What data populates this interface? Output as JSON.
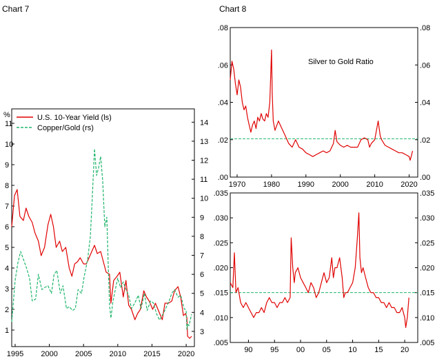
{
  "titles": {
    "chart7": "Chart 7",
    "chart8": "Chart 8"
  },
  "colors": {
    "red": "#e00000",
    "green": "#1fb56b",
    "refline": "#1fb56b"
  },
  "chart_data": [
    {
      "id": "chart7",
      "type": "line",
      "title": "",
      "ylabel_left": "%",
      "xlim": [
        1994.5,
        2021.2
      ],
      "ylim_left": [
        0.2,
        11.7
      ],
      "ylim_right": [
        2.2,
        14.7
      ],
      "x_ticks": [
        1995,
        2000,
        2005,
        2010,
        2015,
        2020
      ],
      "x_tick_labels": [
        "1995",
        "2000",
        "2005",
        "2010",
        "2015",
        "2020"
      ],
      "y_left_ticks": [
        1,
        2,
        3,
        4,
        5,
        6,
        7,
        8,
        9,
        10,
        11
      ],
      "y_left_tick_labels": [
        "1",
        "2",
        "3",
        "4",
        "5",
        "6",
        "7",
        "8",
        "9",
        "10",
        "11"
      ],
      "y_right_ticks": [
        3,
        4,
        5,
        6,
        7,
        8,
        9,
        10,
        11,
        12,
        13,
        14
      ],
      "y_right_tick_labels": [
        "3",
        "4",
        "5",
        "6",
        "7",
        "8",
        "9",
        "10",
        "11",
        "12",
        "13",
        "14"
      ],
      "legend_position": "top-left",
      "grid": false,
      "series": [
        {
          "name": "U.S. 10-Year Yield (ls)",
          "axis": "left",
          "style": "solid",
          "color": "#e00000",
          "x": [
            1994.5,
            1994.9,
            1995.3,
            1995.7,
            1996.2,
            1996.6,
            1997.0,
            1997.5,
            1997.9,
            1998.4,
            1998.8,
            1999.3,
            1999.8,
            2000.2,
            2000.6,
            2001.0,
            2001.5,
            2001.9,
            2002.4,
            2002.9,
            2003.3,
            2003.7,
            2004.1,
            2004.5,
            2005.0,
            2005.4,
            2005.8,
            2006.2,
            2006.6,
            2007.0,
            2007.5,
            2007.9,
            2008.3,
            2008.8,
            2009.0,
            2009.4,
            2009.9,
            2010.3,
            2010.8,
            2011.2,
            2011.6,
            2012.0,
            2012.5,
            2012.9,
            2013.3,
            2013.8,
            2014.2,
            2014.6,
            2015.1,
            2015.5,
            2016.0,
            2016.5,
            2016.9,
            2017.4,
            2017.9,
            2018.3,
            2018.8,
            2019.2,
            2019.6,
            2019.9,
            2020.1,
            2020.2,
            2020.5,
            2020.8
          ],
          "y": [
            6.0,
            7.5,
            7.8,
            6.5,
            6.3,
            6.9,
            6.5,
            6.2,
            5.7,
            5.3,
            4.6,
            5.0,
            6.1,
            6.6,
            6.0,
            5.0,
            5.3,
            4.8,
            5.0,
            4.0,
            3.6,
            4.2,
            4.3,
            4.5,
            4.2,
            4.2,
            4.5,
            4.8,
            5.1,
            4.7,
            4.8,
            4.3,
            3.8,
            3.7,
            2.3,
            3.4,
            3.6,
            3.8,
            2.6,
            3.4,
            2.2,
            2.0,
            1.5,
            1.8,
            2.0,
            2.9,
            2.6,
            2.4,
            2.0,
            2.3,
            1.9,
            1.5,
            2.3,
            2.3,
            2.4,
            2.9,
            3.1,
            2.6,
            1.7,
            1.8,
            1.6,
            0.7,
            0.6,
            0.7
          ]
        },
        {
          "name": "Copper/Gold (rs)",
          "axis": "right",
          "style": "dashed",
          "color": "#1fb56b",
          "x": [
            1994.5,
            1995.0,
            1995.4,
            1995.8,
            1996.2,
            1996.7,
            1997.1,
            1997.5,
            1998.0,
            1998.4,
            1998.9,
            1999.3,
            1999.8,
            2000.3,
            2000.7,
            2001.1,
            2001.6,
            2002.0,
            2002.5,
            2002.9,
            2003.4,
            2003.8,
            2004.2,
            2004.7,
            2005.1,
            2005.6,
            2006.0,
            2006.3,
            2006.6,
            2006.9,
            2007.2,
            2007.5,
            2007.8,
            2008.1,
            2008.4,
            2008.6,
            2008.8,
            2009.0,
            2009.3,
            2009.7,
            2010.0,
            2010.4,
            2010.8,
            2011.2,
            2011.6,
            2012.0,
            2012.5,
            2013.0,
            2013.4,
            2013.9,
            2014.3,
            2014.8,
            2015.2,
            2015.7,
            2016.1,
            2016.6,
            2017.0,
            2017.5,
            2017.9,
            2018.3,
            2018.8,
            2019.2,
            2019.7,
            2020.0,
            2020.1,
            2020.2,
            2020.4,
            2020.6,
            2020.8
          ],
          "y": [
            3.5,
            5.7,
            6.6,
            7.2,
            6.8,
            6.3,
            5.8,
            4.6,
            4.7,
            6.0,
            5.2,
            5.3,
            5.4,
            5.0,
            6.0,
            6.2,
            5.0,
            5.4,
            4.2,
            4.3,
            4.1,
            4.2,
            5.2,
            5.0,
            5.9,
            6.8,
            8.0,
            10.2,
            12.6,
            11.2,
            11.6,
            12.2,
            10.9,
            8.5,
            9.0,
            6.6,
            4.4,
            3.7,
            4.6,
            5.3,
            5.8,
            5.3,
            5.6,
            5.2,
            4.9,
            4.2,
            4.5,
            4.9,
            4.2,
            5.0,
            4.1,
            4.6,
            4.5,
            3.9,
            3.6,
            3.9,
            4.2,
            4.6,
            5.0,
            5.2,
            4.8,
            4.9,
            4.2,
            4.1,
            3.1,
            3.4,
            3.3,
            3.6,
            3.9
          ]
        }
      ]
    },
    {
      "id": "chart8-top",
      "type": "line",
      "title": "",
      "annotation": "Silver to Gold Ratio",
      "xlim": [
        1968,
        2022.5
      ],
      "ylim": [
        0,
        0.08
      ],
      "x_ticks": [
        1970,
        1980,
        1990,
        2000,
        2010,
        2020
      ],
      "x_tick_labels": [
        "1970",
        "1980",
        "1990",
        "2000",
        "2010",
        "2020"
      ],
      "y_ticks": [
        0,
        0.02,
        0.04,
        0.06,
        0.08
      ],
      "y_tick_labels": [
        ".00",
        ".02",
        ".04",
        ".06",
        ".08"
      ],
      "reference_line": 0.0205,
      "grid": false,
      "series": [
        {
          "name": "",
          "style": "solid",
          "color": "#e00000",
          "x": [
            1968.0,
            1968.5,
            1969.0,
            1969.5,
            1970.0,
            1970.5,
            1971.0,
            1971.5,
            1972.0,
            1972.5,
            1973.0,
            1973.5,
            1974.0,
            1974.5,
            1975.0,
            1975.5,
            1976.0,
            1976.5,
            1977.0,
            1977.5,
            1978.0,
            1978.5,
            1979.0,
            1979.5,
            1980.0,
            1980.2,
            1980.5,
            1981.0,
            1982.0,
            1983.0,
            1984.0,
            1985.0,
            1986.0,
            1987.0,
            1988.0,
            1989.0,
            1990.0,
            1991.0,
            1992.0,
            1993.0,
            1994.0,
            1995.0,
            1996.0,
            1997.0,
            1998.0,
            1998.5,
            1999.0,
            2000.0,
            2001.0,
            2002.0,
            2003.0,
            2004.0,
            2005.0,
            2006.0,
            2007.0,
            2008.0,
            2008.5,
            2009.0,
            2010.0,
            2011.0,
            2011.3,
            2011.6,
            2012.0,
            2013.0,
            2014.0,
            2015.0,
            2016.0,
            2017.0,
            2018.0,
            2019.0,
            2020.0,
            2020.3,
            2020.6,
            2021.0
          ],
          "y": [
            0.052,
            0.062,
            0.058,
            0.05,
            0.044,
            0.052,
            0.048,
            0.04,
            0.036,
            0.038,
            0.032,
            0.028,
            0.024,
            0.028,
            0.03,
            0.026,
            0.032,
            0.03,
            0.034,
            0.031,
            0.03,
            0.034,
            0.032,
            0.04,
            0.068,
            0.045,
            0.03,
            0.025,
            0.03,
            0.026,
            0.022,
            0.018,
            0.016,
            0.02,
            0.016,
            0.015,
            0.013,
            0.012,
            0.011,
            0.012,
            0.013,
            0.014,
            0.013,
            0.014,
            0.018,
            0.025,
            0.019,
            0.017,
            0.016,
            0.017,
            0.016,
            0.016,
            0.016,
            0.02,
            0.021,
            0.02,
            0.016,
            0.018,
            0.02,
            0.03,
            0.026,
            0.022,
            0.02,
            0.017,
            0.016,
            0.015,
            0.014,
            0.013,
            0.013,
            0.012,
            0.011,
            0.009,
            0.011,
            0.014
          ]
        }
      ]
    },
    {
      "id": "chart8-bottom",
      "type": "line",
      "title": "",
      "xlim": [
        1986.5,
        2022.5
      ],
      "ylim": [
        0.005,
        0.035
      ],
      "x_ticks": [
        1990,
        1995,
        2000,
        2005,
        2010,
        2015,
        2020
      ],
      "x_tick_labels": [
        "90",
        "95",
        "00",
        "05",
        "10",
        "15",
        "20"
      ],
      "y_ticks": [
        0.005,
        0.01,
        0.015,
        0.02,
        0.025,
        0.03,
        0.035
      ],
      "y_tick_labels": [
        ".005",
        ".010",
        ".015",
        ".020",
        ".025",
        ".030",
        ".035"
      ],
      "reference_line": 0.015,
      "grid": false,
      "series": [
        {
          "name": "",
          "style": "solid",
          "color": "#e00000",
          "x": [
            1986.5,
            1987.0,
            1987.3,
            1987.6,
            1988.0,
            1988.5,
            1989.0,
            1989.5,
            1990.0,
            1990.5,
            1991.0,
            1991.5,
            1992.0,
            1992.5,
            1993.0,
            1993.5,
            1994.0,
            1994.5,
            1995.0,
            1995.5,
            1996.0,
            1996.5,
            1997.0,
            1997.5,
            1998.0,
            1998.2,
            1998.5,
            1998.8,
            1999.0,
            1999.5,
            2000.0,
            2000.5,
            2001.0,
            2001.5,
            2002.0,
            2002.5,
            2003.0,
            2003.5,
            2004.0,
            2004.5,
            2005.0,
            2005.5,
            2006.0,
            2006.3,
            2006.6,
            2007.0,
            2007.5,
            2008.0,
            2008.3,
            2008.6,
            2009.0,
            2009.5,
            2010.0,
            2010.5,
            2010.9,
            2011.2,
            2011.4,
            2011.7,
            2012.0,
            2012.5,
            2013.0,
            2013.5,
            2014.0,
            2014.5,
            2015.0,
            2015.5,
            2016.0,
            2016.5,
            2017.0,
            2017.5,
            2018.0,
            2018.5,
            2019.0,
            2019.5,
            2020.0,
            2020.2,
            2020.5,
            2020.8
          ],
          "y": [
            0.017,
            0.016,
            0.023,
            0.015,
            0.016,
            0.013,
            0.012,
            0.013,
            0.012,
            0.011,
            0.01,
            0.011,
            0.011,
            0.012,
            0.011,
            0.013,
            0.014,
            0.013,
            0.013,
            0.012,
            0.013,
            0.013,
            0.014,
            0.013,
            0.014,
            0.026,
            0.02,
            0.017,
            0.019,
            0.02,
            0.018,
            0.017,
            0.016,
            0.015,
            0.017,
            0.016,
            0.014,
            0.015,
            0.017,
            0.019,
            0.017,
            0.018,
            0.022,
            0.018,
            0.02,
            0.02,
            0.022,
            0.018,
            0.014,
            0.015,
            0.015,
            0.016,
            0.017,
            0.02,
            0.026,
            0.031,
            0.022,
            0.019,
            0.02,
            0.018,
            0.016,
            0.015,
            0.015,
            0.014,
            0.014,
            0.013,
            0.013,
            0.012,
            0.013,
            0.012,
            0.012,
            0.011,
            0.011,
            0.012,
            0.01,
            0.008,
            0.01,
            0.014
          ]
        }
      ]
    }
  ]
}
